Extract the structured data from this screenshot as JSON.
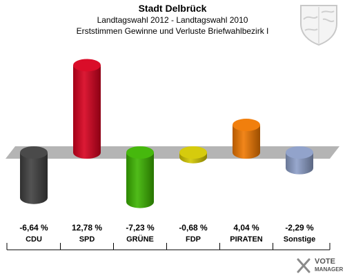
{
  "header": {
    "title": "Stadt Delbrück",
    "subtitle1": "Landtagswahl 2012 - Landtagswahl 2010",
    "subtitle2": "Erststimmen Gewinne und Verluste Briefwahlbezirk I"
  },
  "chart_data": {
    "type": "bar",
    "categories": [
      "CDU",
      "SPD",
      "GRÜNE",
      "FDP",
      "PIRATEN",
      "Sonstige"
    ],
    "values": [
      -6.64,
      12.78,
      -7.23,
      -0.68,
      4.04,
      -2.29
    ],
    "value_labels": [
      "-6,64 %",
      "12,78 %",
      "-7,23 %",
      "-0,68 %",
      "4,04 %",
      "-2,29 %"
    ],
    "colors": [
      "#404040",
      "#d8001e",
      "#3cb400",
      "#d4c800",
      "#f07800",
      "#8c9ec8"
    ],
    "ylim": [
      -8,
      14
    ],
    "grid": false,
    "legend": "none"
  },
  "logo": {
    "line1": "VOTE",
    "line2": "MANAGER"
  }
}
